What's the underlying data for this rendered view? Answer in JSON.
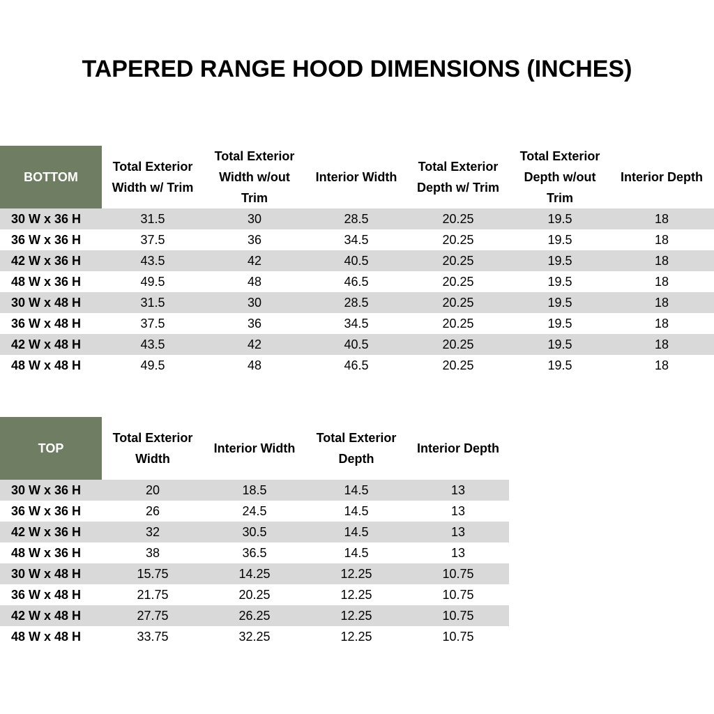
{
  "title": "TAPERED RANGE HOOD DIMENSIONS (INCHES)",
  "tables": [
    {
      "header": [
        "BOTTOM",
        "Total Exterior Width w/ Trim",
        "Total Exterior Width w/out Trim",
        "Interior Width",
        "Total Exterior Depth w/ Trim",
        "Total Exterior Depth w/out Trim",
        "Interior Depth"
      ],
      "rows": [
        [
          "30 W x 36 H",
          "31.5",
          "30",
          "28.5",
          "20.25",
          "19.5",
          "18"
        ],
        [
          "36 W x 36 H",
          "37.5",
          "36",
          "34.5",
          "20.25",
          "19.5",
          "18"
        ],
        [
          "42 W x 36 H",
          "43.5",
          "42",
          "40.5",
          "20.25",
          "19.5",
          "18"
        ],
        [
          "48 W x 36 H",
          "49.5",
          "48",
          "46.5",
          "20.25",
          "19.5",
          "18"
        ],
        [
          "30 W x 48 H",
          "31.5",
          "30",
          "28.5",
          "20.25",
          "19.5",
          "18"
        ],
        [
          "36 W x 48 H",
          "37.5",
          "36",
          "34.5",
          "20.25",
          "19.5",
          "18"
        ],
        [
          "42 W x 48 H",
          "43.5",
          "42",
          "40.5",
          "20.25",
          "19.5",
          "18"
        ],
        [
          "48 W x 48 H",
          "49.5",
          "48",
          "46.5",
          "20.25",
          "19.5",
          "18"
        ]
      ]
    },
    {
      "header": [
        "TOP",
        "Total Exterior Width",
        "Interior Width",
        "Total Exterior Depth",
        "Interior Depth"
      ],
      "rows": [
        [
          "30 W x 36 H",
          "20",
          "18.5",
          "14.5",
          "13"
        ],
        [
          "36 W x 36 H",
          "26",
          "24.5",
          "14.5",
          "13"
        ],
        [
          "42 W x 36 H",
          "32",
          "30.5",
          "14.5",
          "13"
        ],
        [
          "48 W x 36 H",
          "38",
          "36.5",
          "14.5",
          "13"
        ],
        [
          "30 W x 48 H",
          "15.75",
          "14.25",
          "12.25",
          "10.75"
        ],
        [
          "36 W x 48 H",
          "21.75",
          "20.25",
          "12.25",
          "10.75"
        ],
        [
          "42 W x 48 H",
          "27.75",
          "26.25",
          "12.25",
          "10.75"
        ],
        [
          "48 W x 48 H",
          "33.75",
          "32.25",
          "12.25",
          "10.75"
        ]
      ]
    }
  ]
}
